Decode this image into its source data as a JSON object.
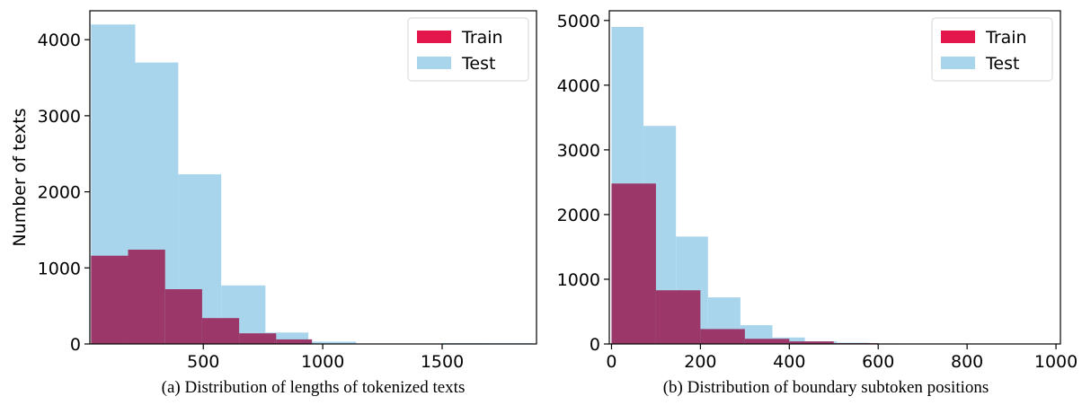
{
  "colors": {
    "train": "#e3174b",
    "test": "#a8d5ec",
    "overlap": "#9b3869"
  },
  "chart_data": [
    {
      "type": "histogram",
      "caption": "(a) Distribution of lengths of tokenized texts",
      "xlabel": "",
      "ylabel": "Number of texts",
      "xlim": [
        25,
        1895
      ],
      "ylim": [
        0,
        4380
      ],
      "xticks": [
        500,
        1000,
        1500
      ],
      "yticks": [
        0,
        1000,
        2000,
        3000,
        4000
      ],
      "legend": {
        "position": "top-right",
        "entries": [
          "Train",
          "Test"
        ]
      },
      "series": [
        {
          "name": "Test",
          "bins": [
            [
              30,
              215,
              4200
            ],
            [
              215,
              395,
              3700
            ],
            [
              395,
              575,
              2230
            ],
            [
              575,
              760,
              770
            ],
            [
              760,
              940,
              150
            ],
            [
              940,
              1140,
              30
            ],
            [
              1140,
              1320,
              5
            ],
            [
              1320,
              1500,
              3
            ],
            [
              1500,
              1690,
              12
            ],
            [
              1690,
              1880,
              10
            ]
          ]
        },
        {
          "name": "Train",
          "bins": [
            [
              30,
              185,
              1160
            ],
            [
              185,
              340,
              1240
            ],
            [
              340,
              495,
              720
            ],
            [
              495,
              650,
              340
            ],
            [
              650,
              805,
              140
            ],
            [
              805,
              955,
              60
            ]
          ]
        }
      ]
    },
    {
      "type": "histogram",
      "caption": "(b) Distribution of boundary subtoken positions",
      "xlabel": "",
      "ylabel": "",
      "xlim": [
        -5,
        1010
      ],
      "ylim": [
        0,
        5150
      ],
      "xticks": [
        0,
        200,
        400,
        600,
        800,
        1000
      ],
      "yticks": [
        0,
        1000,
        2000,
        3000,
        4000,
        5000
      ],
      "legend": {
        "position": "top-right",
        "entries": [
          "Train",
          "Test"
        ]
      },
      "series": [
        {
          "name": "Test",
          "bins": [
            [
              0,
              72,
              4900
            ],
            [
              72,
              145,
              3370
            ],
            [
              145,
              217,
              1660
            ],
            [
              217,
              290,
              720
            ],
            [
              290,
              362,
              290
            ],
            [
              362,
              435,
              100
            ],
            [
              435,
              507,
              40
            ],
            [
              507,
              580,
              20
            ],
            [
              580,
              652,
              8
            ],
            [
              652,
              725,
              4
            ]
          ]
        },
        {
          "name": "Train",
          "bins": [
            [
              0,
              100,
              2480
            ],
            [
              100,
              200,
              830
            ],
            [
              200,
              300,
              230
            ],
            [
              300,
              400,
              80
            ],
            [
              400,
              500,
              40
            ],
            [
              500,
              600,
              12
            ],
            [
              600,
              700,
              5
            ]
          ]
        }
      ]
    }
  ]
}
